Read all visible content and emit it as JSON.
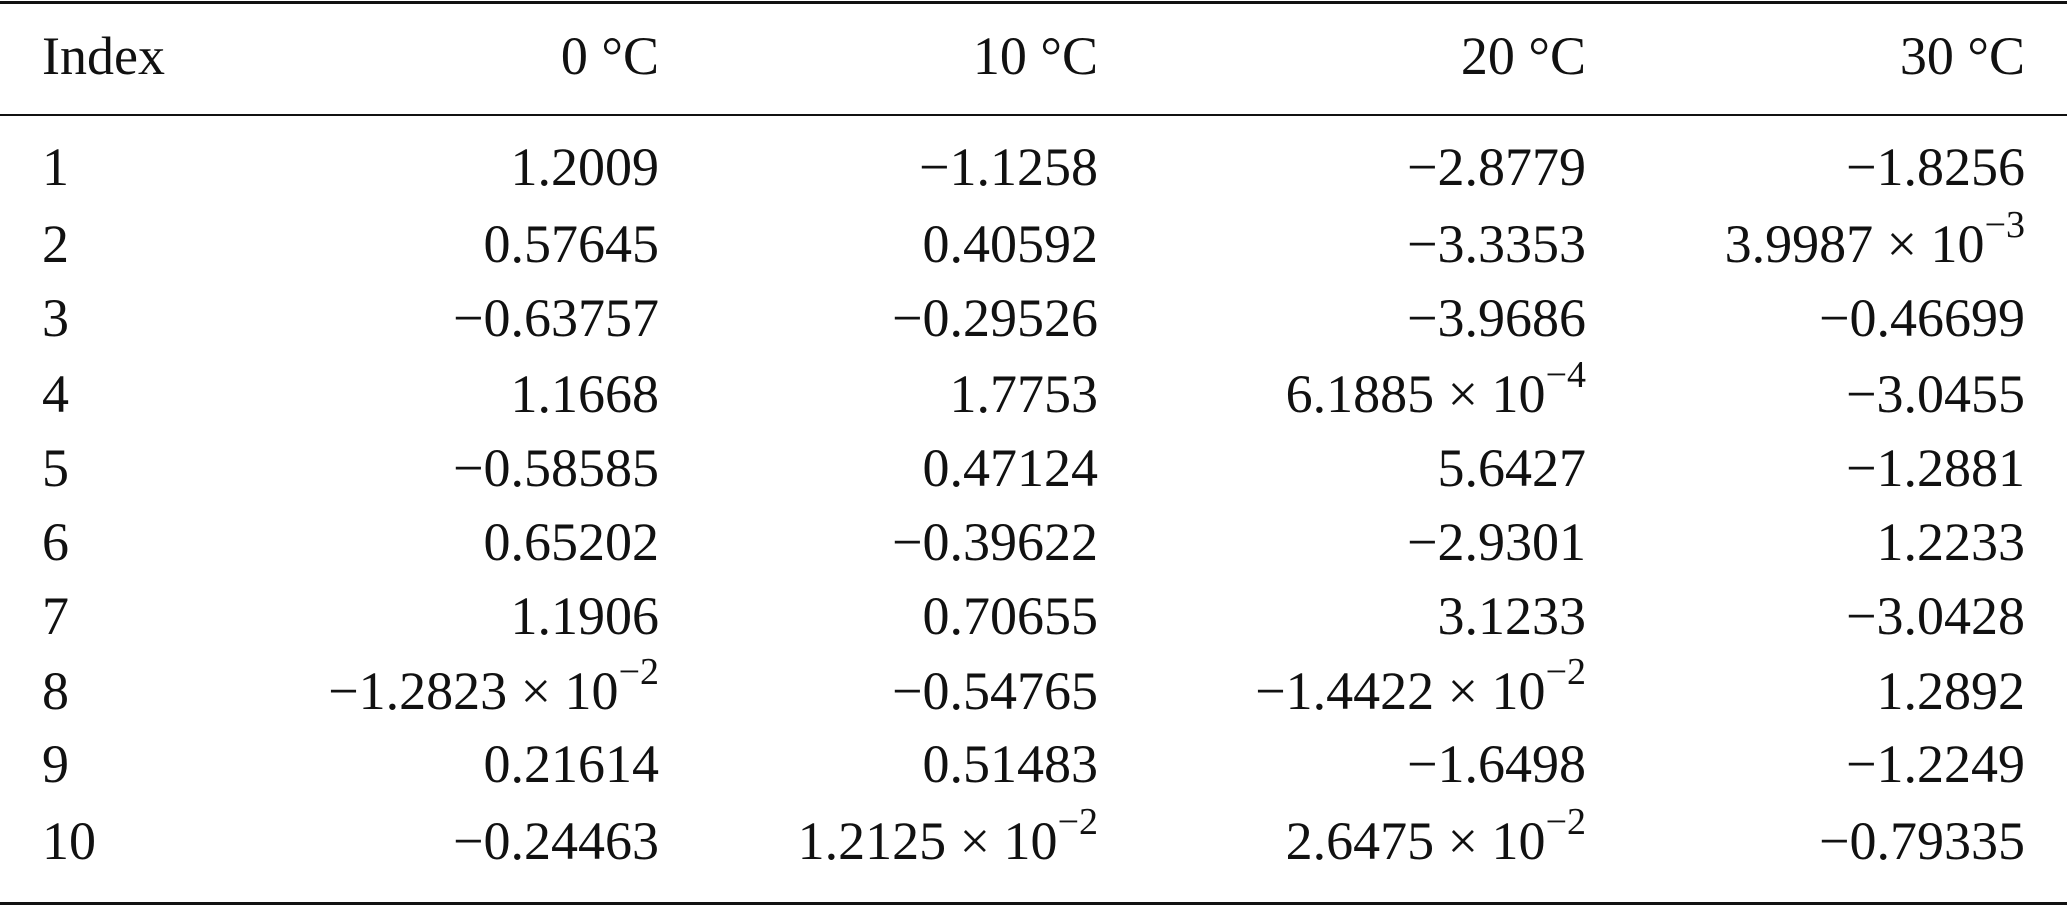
{
  "table": {
    "header": [
      "Index",
      "0 °C",
      "10 °C",
      "20 °C",
      "30 °C"
    ],
    "rows": [
      [
        "1",
        "1.2009",
        "−1.1258",
        "−2.8779",
        "−1.8256"
      ],
      [
        "2",
        "0.57645",
        "0.40592",
        "−3.3353",
        {
          "base": "3.9987 × 10",
          "sup": "−3"
        }
      ],
      [
        "3",
        "−0.63757",
        "−0.29526",
        "−3.9686",
        "−0.46699"
      ],
      [
        "4",
        "1.1668",
        "1.7753",
        {
          "base": "6.1885 × 10",
          "sup": "−4"
        },
        "−3.0455"
      ],
      [
        "5",
        "−0.58585",
        "0.47124",
        "5.6427",
        "−1.2881"
      ],
      [
        "6",
        "0.65202",
        "−0.39622",
        "−2.9301",
        "1.2233"
      ],
      [
        "7",
        "1.1906",
        "0.70655",
        "3.1233",
        "−3.0428"
      ],
      [
        "8",
        {
          "base": "−1.2823 × 10",
          "sup": "−2"
        },
        "−0.54765",
        {
          "base": "−1.4422 × 10",
          "sup": "−2"
        },
        "1.2892"
      ],
      [
        "9",
        "0.21614",
        "0.51483",
        "−1.6498",
        "−1.2249"
      ],
      [
        "10",
        "−0.24463",
        {
          "base": "1.2125 × 10",
          "sup": "−2"
        },
        {
          "base": "2.6475 × 10",
          "sup": "−2"
        },
        "−0.79335"
      ]
    ]
  }
}
